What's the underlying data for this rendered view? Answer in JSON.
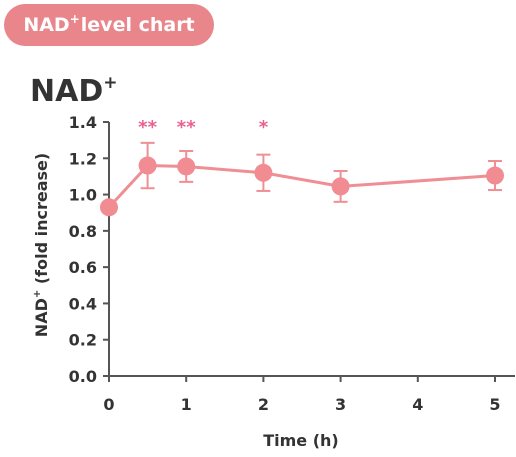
{
  "badge": {
    "pre": "NAD",
    "sup": "+",
    "post": "level chart"
  },
  "chart_data": {
    "type": "line",
    "title": "NAD",
    "title_sup": "+",
    "xlabel": "Time (h)",
    "ylabel_pre": "NAD",
    "ylabel_sup": "+",
    "ylabel_post": " (fold increase)",
    "xlim": [
      0,
      5
    ],
    "ylim": [
      0,
      1.4
    ],
    "x_ticks": [
      0,
      1,
      2,
      3,
      4,
      5
    ],
    "y_ticks": [
      "0.0",
      "0.2",
      "0.4",
      "0.6",
      "0.8",
      "1.0",
      "1.2",
      "1.4"
    ],
    "grid": false,
    "series": [
      {
        "x": [
          0,
          0.5,
          1,
          2,
          3,
          5
        ],
        "y": [
          0.93,
          1.16,
          1.155,
          1.12,
          1.045,
          1.105
        ],
        "error": [
          0,
          0.125,
          0.085,
          0.1,
          0.085,
          0.08
        ],
        "significance": [
          "",
          "**",
          "**",
          "*",
          "",
          ""
        ]
      }
    ],
    "colors": {
      "series": "#ef8f94",
      "marker": "#f08c92",
      "significance": "#ea5f8d",
      "axis": "#555555",
      "text": "#333333"
    }
  }
}
